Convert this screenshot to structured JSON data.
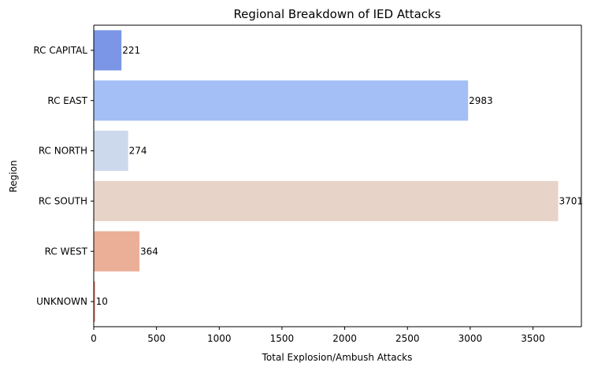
{
  "chart_data": {
    "type": "bar",
    "orientation": "horizontal",
    "title": "Regional Breakdown of IED Attacks",
    "xlabel": "Total Explosion/Ambush Attacks",
    "ylabel": "Region",
    "categories": [
      "RC CAPITAL",
      "RC EAST",
      "RC NORTH",
      "RC SOUTH",
      "RC WEST",
      "UNKNOWN"
    ],
    "values": [
      221,
      2983,
      274,
      3701,
      364,
      10
    ],
    "colors": [
      "#7b96e6",
      "#a3bff5",
      "#ccd9ed",
      "#e8d3c8",
      "#ebaf98",
      "#e07b6b"
    ],
    "xlim": [
      0,
      3886
    ],
    "xticks": [
      0,
      500,
      1000,
      1500,
      2000,
      2500,
      3000,
      3500
    ],
    "grid": false,
    "data_labels": true
  }
}
